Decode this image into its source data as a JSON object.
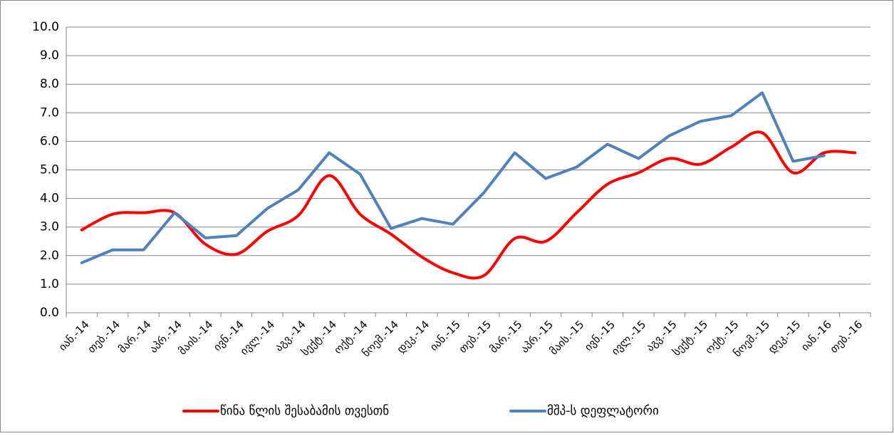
{
  "chart_data": {
    "type": "line",
    "categories": [
      "იან.-14",
      "თებ.-14",
      "მარ.-14",
      "აპრ.-14",
      "მაის.-14",
      "ივნ.-14",
      "ივლ.-14",
      "აგვ.-14",
      "სექტ.-14",
      "ოქტ.-14",
      "ნოემ.-14",
      "დეკ.-14",
      "იან.-15",
      "თებ.-15",
      "მარ.-15",
      "აპრ.-15",
      "მაის.-15",
      "ივნ.-15",
      "ივლ.-15",
      "აგვ.-15",
      "სექტ.-15",
      "ოქტ.-15",
      "ნოემ.-15",
      "დეკ.-15",
      "იან.-16",
      "თებ.-16"
    ],
    "series": [
      {
        "name": "წინა წლის შესაბამის თვესთნ",
        "color": "#ff0000",
        "smooth": true,
        "values": [
          2.9,
          3.45,
          3.5,
          3.5,
          2.4,
          2.05,
          2.85,
          3.4,
          4.8,
          3.45,
          2.75,
          1.95,
          1.4,
          1.3,
          2.6,
          2.5,
          3.5,
          4.5,
          4.9,
          5.4,
          5.2,
          5.8,
          6.3,
          4.9,
          5.6,
          5.6
        ]
      },
      {
        "name": "მშპ-ს დეფლატორი",
        "color": "#4f81bd",
        "smooth": false,
        "values": [
          1.75,
          2.2,
          2.2,
          3.5,
          2.62,
          2.7,
          3.65,
          4.3,
          5.6,
          4.85,
          2.95,
          3.3,
          3.1,
          4.2,
          5.6,
          4.7,
          5.1,
          5.9,
          5.4,
          6.2,
          6.7,
          6.9,
          7.7,
          5.3,
          5.5,
          null
        ]
      }
    ],
    "ylim": [
      0,
      10
    ],
    "yticks": [
      {
        "value": 0,
        "label": "0.0"
      },
      {
        "value": 1,
        "label": "1.0"
      },
      {
        "value": 2,
        "label": "2.0"
      },
      {
        "value": 3,
        "label": "3.0"
      },
      {
        "value": 4,
        "label": "4.0"
      },
      {
        "value": 5,
        "label": "5.0"
      },
      {
        "value": 6,
        "label": "6.0"
      },
      {
        "value": 7,
        "label": "7.0"
      },
      {
        "value": 8,
        "label": "8.0"
      },
      {
        "value": 9,
        "label": "9.0"
      },
      {
        "value": 10,
        "label": "10.0"
      }
    ],
    "grid": true,
    "legend": "bottom"
  }
}
